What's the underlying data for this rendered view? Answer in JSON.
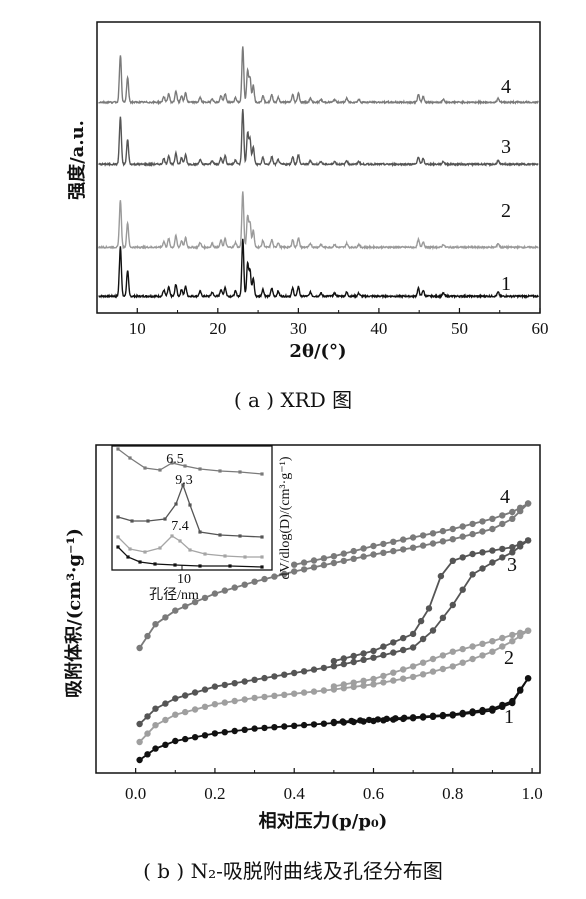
{
  "figure_a": {
    "caption": "( a ) XRD 图",
    "chart_data": {
      "type": "line",
      "xlabel": "2θ/(°)",
      "ylabel": "强度/a.u.",
      "xlim": [
        5,
        60
      ],
      "xticks": [
        "10",
        "20",
        "30",
        "40",
        "50",
        "60"
      ],
      "series": [
        {
          "tag": "1",
          "color": "#111111",
          "offset": 0
        },
        {
          "tag": "2",
          "color": "#9a9a9a",
          "offset": 1
        },
        {
          "tag": "3",
          "color": "#555555",
          "offset": 2
        },
        {
          "tag": "4",
          "color": "#7a7a7a",
          "offset": 3
        }
      ],
      "peaks": [
        {
          "x": 7.9,
          "h": 50
        },
        {
          "x": 8.8,
          "h": 26
        },
        {
          "x": 13.3,
          "h": 6
        },
        {
          "x": 13.9,
          "h": 9
        },
        {
          "x": 14.8,
          "h": 12
        },
        {
          "x": 15.5,
          "h": 7
        },
        {
          "x": 16.0,
          "h": 10
        },
        {
          "x": 17.8,
          "h": 5
        },
        {
          "x": 19.3,
          "h": 4
        },
        {
          "x": 20.4,
          "h": 7
        },
        {
          "x": 20.9,
          "h": 9
        },
        {
          "x": 22.2,
          "h": 5
        },
        {
          "x": 23.1,
          "h": 58
        },
        {
          "x": 23.7,
          "h": 33
        },
        {
          "x": 24.0,
          "h": 26
        },
        {
          "x": 24.4,
          "h": 18
        },
        {
          "x": 25.6,
          "h": 7
        },
        {
          "x": 26.7,
          "h": 8
        },
        {
          "x": 27.5,
          "h": 5
        },
        {
          "x": 29.3,
          "h": 8
        },
        {
          "x": 30.0,
          "h": 10
        },
        {
          "x": 31.5,
          "h": 4
        },
        {
          "x": 32.8,
          "h": 3
        },
        {
          "x": 34.5,
          "h": 3
        },
        {
          "x": 36.0,
          "h": 4
        },
        {
          "x": 37.5,
          "h": 3
        },
        {
          "x": 44.9,
          "h": 8
        },
        {
          "x": 45.5,
          "h": 6
        },
        {
          "x": 48.0,
          "h": 3
        },
        {
          "x": 54.8,
          "h": 4
        }
      ]
    }
  },
  "figure_b": {
    "caption": "( b ) N₂-吸脱附曲线及孔径分布图",
    "chart_data": {
      "type": "line",
      "xlabel": "相对压力(p/p₀)",
      "ylabel": "吸附体积/(cm³·g⁻¹)",
      "xlim": [
        -0.1,
        1.02
      ],
      "xticks": [
        "0.0",
        "0.2",
        "0.4",
        "0.6",
        "0.8",
        "1.0"
      ],
      "series": [
        {
          "tag": "1",
          "color": "#111111",
          "adsorption": [
            [
              0.01,
              0.0
            ],
            [
              0.05,
              0.6
            ],
            [
              0.1,
              1.0
            ],
            [
              0.2,
              1.4
            ],
            [
              0.3,
              1.65
            ],
            [
              0.4,
              1.8
            ],
            [
              0.5,
              1.95
            ],
            [
              0.6,
              2.05
            ],
            [
              0.7,
              2.2
            ],
            [
              0.8,
              2.35
            ],
            [
              0.9,
              2.6
            ],
            [
              0.95,
              3.0
            ],
            [
              0.99,
              4.3
            ]
          ],
          "desorption": [
            [
              0.99,
              4.3
            ],
            [
              0.95,
              3.1
            ],
            [
              0.9,
              2.7
            ],
            [
              0.8,
              2.4
            ],
            [
              0.7,
              2.25
            ],
            [
              0.5,
              2.0
            ]
          ]
        },
        {
          "tag": "2",
          "color": "#9f9f9f",
          "adsorption": [
            [
              0.01,
              0.0
            ],
            [
              0.05,
              0.8
            ],
            [
              0.1,
              1.3
            ],
            [
              0.2,
              1.8
            ],
            [
              0.3,
              2.1
            ],
            [
              0.4,
              2.3
            ],
            [
              0.5,
              2.5
            ],
            [
              0.6,
              2.75
            ],
            [
              0.7,
              3.1
            ],
            [
              0.8,
              3.6
            ],
            [
              0.9,
              4.3
            ],
            [
              0.95,
              4.8
            ],
            [
              0.99,
              5.3
            ]
          ],
          "desorption": [
            [
              0.99,
              5.3
            ],
            [
              0.95,
              5.1
            ],
            [
              0.9,
              4.8
            ],
            [
              0.8,
              4.3
            ],
            [
              0.7,
              3.6
            ],
            [
              0.6,
              3.0
            ],
            [
              0.5,
              2.65
            ]
          ]
        },
        {
          "tag": "3",
          "color": "#555555",
          "adsorption": [
            [
              0.01,
              0.0
            ],
            [
              0.05,
              0.9
            ],
            [
              0.1,
              1.5
            ],
            [
              0.2,
              2.2
            ],
            [
              0.3,
              2.6
            ],
            [
              0.4,
              3.0
            ],
            [
              0.5,
              3.4
            ],
            [
              0.6,
              3.9
            ],
            [
              0.7,
              4.5
            ],
            [
              0.75,
              5.5
            ],
            [
              0.8,
              7.0
            ],
            [
              0.85,
              8.8
            ],
            [
              0.9,
              9.5
            ],
            [
              0.95,
              10.1
            ],
            [
              0.99,
              10.8
            ]
          ],
          "desorption": [
            [
              0.99,
              10.8
            ],
            [
              0.95,
              10.4
            ],
            [
              0.9,
              10.2
            ],
            [
              0.85,
              10.0
            ],
            [
              0.8,
              9.6
            ],
            [
              0.77,
              8.7
            ],
            [
              0.74,
              6.8
            ],
            [
              0.7,
              5.3
            ],
            [
              0.6,
              4.3
            ],
            [
              0.5,
              3.7
            ]
          ]
        },
        {
          "tag": "4",
          "color": "#7a7a7a",
          "adsorption": [
            [
              0.01,
              0.0
            ],
            [
              0.05,
              1.4
            ],
            [
              0.1,
              2.2
            ],
            [
              0.2,
              3.2
            ],
            [
              0.3,
              3.9
            ],
            [
              0.4,
              4.5
            ],
            [
              0.5,
              5.0
            ],
            [
              0.6,
              5.5
            ],
            [
              0.7,
              5.9
            ],
            [
              0.8,
              6.4
            ],
            [
              0.9,
              7.0
            ],
            [
              0.95,
              7.6
            ],
            [
              0.99,
              8.5
            ]
          ],
          "desorption": [
            [
              0.99,
              8.5
            ],
            [
              0.95,
              8.0
            ],
            [
              0.9,
              7.6
            ],
            [
              0.8,
              7.0
            ],
            [
              0.7,
              6.5
            ],
            [
              0.6,
              6.0
            ],
            [
              0.5,
              5.4
            ],
            [
              0.4,
              4.9
            ]
          ]
        }
      ],
      "inset": {
        "xlabel": "孔径/nm",
        "ylabel": "dV/dlog(D)/(cm³·g⁻¹)",
        "xtick": "10",
        "peak_labels": [
          {
            "text": "6.5",
            "series": "4"
          },
          {
            "text": "9.3",
            "series": "3"
          },
          {
            "text": "7.4",
            "series": "2"
          }
        ]
      }
    }
  }
}
